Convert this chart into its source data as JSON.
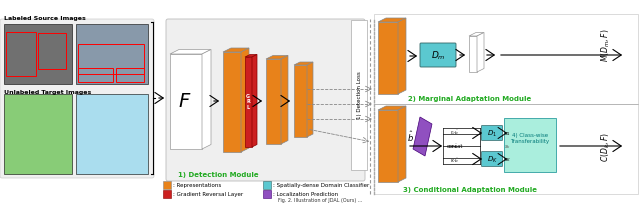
{
  "fig_width": 6.4,
  "fig_height": 2.05,
  "dpi": 100,
  "orange": "#E8821A",
  "red": "#CC2020",
  "cyan": "#5BC8D0",
  "purple": "#9050C0",
  "green_label": "#22AA22",
  "detection_module_label": "1) Detection Module",
  "marginal_module_label": "2) Marginal Adaptation Module",
  "conditional_module_label": "3) Conditional Adaptation Module",
  "class_wise_label": "4) Class-wise\nTransferability"
}
